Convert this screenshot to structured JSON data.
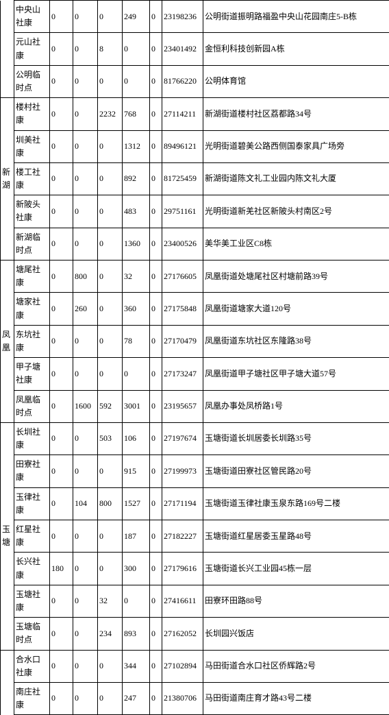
{
  "colors": {
    "border": "#000000",
    "text": "#000000",
    "bg": "#ffffff"
  },
  "font": {
    "family": "SimSun",
    "size_pt": 9
  },
  "groups": [
    {
      "label": "",
      "rows": [
        {
          "name": "中央山社康",
          "v1": "0",
          "v2": "0",
          "v3": "0",
          "v4": "249",
          "v5": "0",
          "phone": "23198236",
          "addr": "公明街道振明路福盈中央山花园南庄5-B栋"
        },
        {
          "name": "元山社康",
          "v1": "0",
          "v2": "0",
          "v3": "8",
          "v4": "0",
          "v5": "0",
          "phone": "23401492",
          "addr": "金恒利科技创新园A栋"
        },
        {
          "name": "公明临时点",
          "v1": "0",
          "v2": "0",
          "v3": "0",
          "v4": "0",
          "v5": "0",
          "phone": "81766220",
          "addr": "公明体育馆"
        }
      ]
    },
    {
      "label": "新湖",
      "rows": [
        {
          "name": "楼村社康",
          "v1": "0",
          "v2": "0",
          "v3": "2232",
          "v4": "768",
          "v5": "0",
          "phone": "27114211",
          "addr": "新湖街道楼村社区荔都路34号"
        },
        {
          "name": "圳美社康",
          "v1": "0",
          "v2": "0",
          "v3": "0",
          "v4": "1312",
          "v5": "0",
          "phone": "89496121",
          "addr": "光明街道碧美公路西侧国泰家具广场旁"
        },
        {
          "name": "楼工社康",
          "v1": "0",
          "v2": "0",
          "v3": "0",
          "v4": "892",
          "v5": "0",
          "phone": "81725459",
          "addr": "新湖街道陈文礼工业园内陈文礼大厦"
        },
        {
          "name": "新陂头社康",
          "v1": "0",
          "v2": "0",
          "v3": "0",
          "v4": "483",
          "v5": "0",
          "phone": "29751161",
          "addr": "光明街道新羌社区新陂头村南区2号"
        },
        {
          "name": "新湖临时点",
          "v1": "0",
          "v2": "0",
          "v3": "0",
          "v4": "1360",
          "v5": "0",
          "phone": "23400526",
          "addr": "美华美工业区C8栋"
        }
      ]
    },
    {
      "label": "凤凰",
      "rows": [
        {
          "name": "塘尾社康",
          "v1": "0",
          "v2": "800",
          "v3": "0",
          "v4": "32",
          "v5": "0",
          "phone": "27176605",
          "addr": "凤凰街道处塘尾社区村塘前路39号"
        },
        {
          "name": "塘家社康",
          "v1": "0",
          "v2": "260",
          "v3": "0",
          "v4": "360",
          "v5": "0",
          "phone": "27175848",
          "addr": "凤凰街道塘家大道120号"
        },
        {
          "name": "东坑社康",
          "v1": "0",
          "v2": "0",
          "v3": "0",
          "v4": "78",
          "v5": "0",
          "phone": "27170479",
          "addr": "凤凰街道东坑社区东隆路38号"
        },
        {
          "name": "甲子塘社康",
          "v1": "0",
          "v2": "0",
          "v3": "0",
          "v4": "0",
          "v5": "0",
          "phone": "27173247",
          "addr": "凤凰街道甲子塘社区甲子塘大道57号"
        },
        {
          "name": "凤凰临时点",
          "v1": "0",
          "v2": "1600",
          "v3": "592",
          "v4": "3001",
          "v5": "0",
          "phone": "23195657",
          "addr": "凤凰办事处凤桥路1号"
        }
      ]
    },
    {
      "label": "玉塘",
      "rows": [
        {
          "name": "长圳社康",
          "v1": "0",
          "v2": "0",
          "v3": "503",
          "v4": "106",
          "v5": "0",
          "phone": "27197674",
          "addr": "玉塘街道长圳居委长圳路35号"
        },
        {
          "name": "田寮社康",
          "v1": "0",
          "v2": "0",
          "v3": "0",
          "v4": "915",
          "v5": "0",
          "phone": "27199973",
          "addr": "玉塘街道田寮社区管民路20号"
        },
        {
          "name": "玉律社康",
          "v1": "0",
          "v2": "104",
          "v3": "800",
          "v4": "1527",
          "v5": "0",
          "phone": "27171194",
          "addr": "玉塘街道玉律社康玉泉东路169号二楼"
        },
        {
          "name": "红星社康",
          "v1": "0",
          "v2": "0",
          "v3": "0",
          "v4": "187",
          "v5": "0",
          "phone": "27182227",
          "addr": "玉塘街道红星居委玉星路48号"
        },
        {
          "name": "长兴社康",
          "v1": "180",
          "v2": "0",
          "v3": "0",
          "v4": "300",
          "v5": "0",
          "phone": "27179616",
          "addr": "玉塘街道长兴工业园45栋一层"
        },
        {
          "name": "玉塘社康",
          "v1": "0",
          "v2": "0",
          "v3": "32",
          "v4": "0",
          "v5": "0",
          "phone": "27416611",
          "addr": "田寮环田路88号"
        },
        {
          "name": "玉塘临时点",
          "v1": "0",
          "v2": "0",
          "v3": "234",
          "v4": "893",
          "v5": "0",
          "phone": "27162052",
          "addr": "长圳园兴饭店"
        }
      ]
    },
    {
      "label": "",
      "rows": [
        {
          "name": "合水口社康",
          "v1": "0",
          "v2": "0",
          "v3": "0",
          "v4": "344",
          "v5": "0",
          "phone": "27102894",
          "addr": "马田街道合水口社区侨辉路2号"
        },
        {
          "name": "南庄社康",
          "v1": "0",
          "v2": "0",
          "v3": "0",
          "v4": "247",
          "v5": "0",
          "phone": "21380706",
          "addr": "马田街道南庄育才路43号二楼"
        }
      ]
    }
  ]
}
